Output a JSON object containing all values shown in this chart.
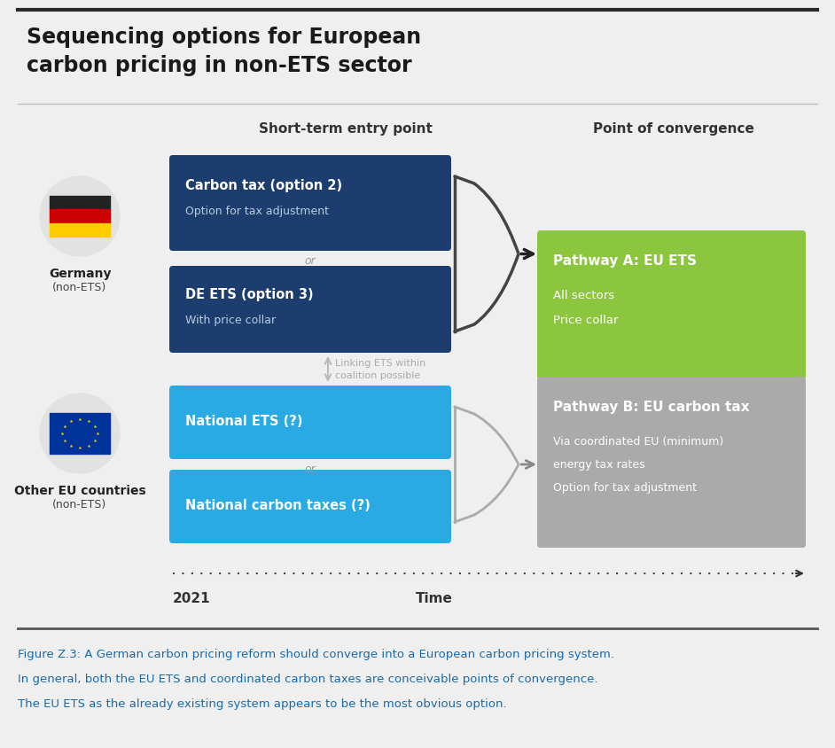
{
  "title_line1": "Sequencing options for European",
  "title_line2": "carbon pricing in non-ETS sector",
  "title_fontsize": 17,
  "background_color": "#efefef",
  "header_line_color": "#2a2a2a",
  "short_term_label": "Short-term entry point",
  "convergence_label": "Point of convergence",
  "dark_blue": "#1c3d6e",
  "light_blue": "#29aae2",
  "green": "#8cc63f",
  "gray_box": "#aaaaaa",
  "germany_label1": "Germany",
  "germany_label2": "(non-ETS)",
  "eu_label1": "Other EU countries",
  "eu_label2": "(non-ETS)",
  "box1_title": "Carbon tax (option 2)",
  "box1_sub": "Option for tax adjustment",
  "box2_title": "DE ETS (option 3)",
  "box2_sub": "With price collar",
  "box3_title": "National ETS (?)",
  "box4_title": "National carbon taxes (?)",
  "pathA_title": "Pathway A: EU ETS",
  "pathA_sub1": "All sectors",
  "pathA_sub2": "Price collar",
  "pathB_title": "Pathway B: EU carbon tax",
  "pathB_sub1": "Via coordinated EU (minimum)",
  "pathB_sub2": "energy tax rates",
  "pathB_sub3": "Option for tax adjustment",
  "linking_text": "Linking ETS within\ncoalition possible",
  "year_label": "2021",
  "time_label": "Time",
  "figure_caption_line1": "Figure Z.3: A German carbon pricing reform should converge into a European carbon pricing system.",
  "figure_caption_line2": "In general, both the EU ETS and coordinated carbon taxes are conceivable points of convergence.",
  "figure_caption_line3": "The EU ETS as the already existing system appears to be the most obvious option.",
  "caption_color": "#1a6aaa",
  "or_color": "#999999",
  "flag_colors": [
    "#222222",
    "#cc0000",
    "#ffcc00"
  ],
  "eu_flag_color": "#003399",
  "eu_star_color": "#ffcc00"
}
